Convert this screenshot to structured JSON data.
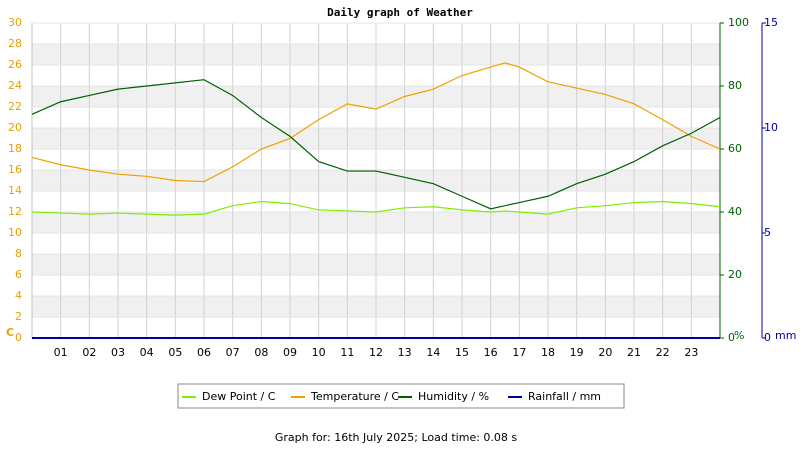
{
  "chart_data": {
    "type": "line",
    "title": "Daily graph of Weather",
    "footer": "Graph for: 16th July 2025; Load time: 0.08 s",
    "x": [
      0,
      1,
      2,
      3,
      4,
      5,
      6,
      7,
      8,
      9,
      10,
      11,
      12,
      13,
      14,
      15,
      16,
      16.5,
      17,
      18,
      19,
      20,
      21,
      22,
      23,
      24
    ],
    "xlim": [
      0,
      24
    ],
    "xticks": [
      {
        "value": 1,
        "label": "01"
      },
      {
        "value": 2,
        "label": "02"
      },
      {
        "value": 3,
        "label": "03"
      },
      {
        "value": 4,
        "label": "04"
      },
      {
        "value": 5,
        "label": "05"
      },
      {
        "value": 6,
        "label": "06"
      },
      {
        "value": 7,
        "label": "07"
      },
      {
        "value": 8,
        "label": "08"
      },
      {
        "value": 9,
        "label": "09"
      },
      {
        "value": 10,
        "label": "10"
      },
      {
        "value": 11,
        "label": "11"
      },
      {
        "value": 12,
        "label": "12"
      },
      {
        "value": 13,
        "label": "13"
      },
      {
        "value": 14,
        "label": "14"
      },
      {
        "value": 15,
        "label": "15"
      },
      {
        "value": 16,
        "label": "16"
      },
      {
        "value": 17,
        "label": "17"
      },
      {
        "value": 18,
        "label": "18"
      },
      {
        "value": 19,
        "label": "19"
      },
      {
        "value": 20,
        "label": "20"
      },
      {
        "value": 21,
        "label": "21"
      },
      {
        "value": 22,
        "label": "22"
      },
      {
        "value": 23,
        "label": "23"
      }
    ],
    "y_label": "C",
    "ylim": [
      0,
      30
    ],
    "yticks": [
      0,
      2,
      4,
      6,
      8,
      10,
      12,
      14,
      16,
      18,
      20,
      22,
      24,
      26,
      28,
      30
    ],
    "y2_label": "%",
    "y2lim": [
      0,
      100
    ],
    "y2ticks": [
      0,
      20,
      40,
      60,
      80,
      100
    ],
    "y3_label": "mm",
    "y3lim": [
      0,
      15
    ],
    "y3ticks": [
      0,
      5,
      10,
      15
    ],
    "grid": true,
    "series": [
      {
        "name": "Dew Point / C",
        "color": "#80ee00",
        "axis": "y",
        "values": [
          12.0,
          11.9,
          11.8,
          11.9,
          11.8,
          11.7,
          11.8,
          12.6,
          13.0,
          12.8,
          12.2,
          12.1,
          12.0,
          12.4,
          12.5,
          12.2,
          12.0,
          12.1,
          12.0,
          11.8,
          12.4,
          12.6,
          12.9,
          13.0,
          12.8,
          12.5
        ]
      },
      {
        "name": "Temperature / C",
        "color": "#f0a000",
        "axis": "y",
        "values": [
          17.2,
          16.5,
          16.0,
          15.6,
          15.4,
          15.0,
          14.9,
          16.3,
          18.0,
          19.0,
          20.8,
          22.3,
          21.8,
          23.0,
          23.7,
          25.0,
          25.8,
          26.2,
          25.8,
          24.4,
          23.8,
          23.2,
          22.3,
          20.8,
          19.2,
          18.0
        ]
      },
      {
        "name": "Humidity / %",
        "color": "#006000",
        "axis": "y2",
        "values": [
          71,
          75,
          77,
          79,
          80,
          81,
          82,
          77,
          70,
          64,
          56,
          53,
          53,
          51,
          49,
          45,
          41,
          42,
          43,
          45,
          49,
          52,
          56,
          61,
          65,
          70
        ]
      },
      {
        "name": "Rainfall / mm",
        "color": "#0000a0",
        "axis": "y3",
        "values": [
          0,
          0,
          0,
          0,
          0,
          0,
          0,
          0,
          0,
          0,
          0,
          0,
          0,
          0,
          0,
          0,
          0,
          0,
          0,
          0,
          0,
          0,
          0,
          0,
          0,
          0
        ]
      }
    ]
  }
}
